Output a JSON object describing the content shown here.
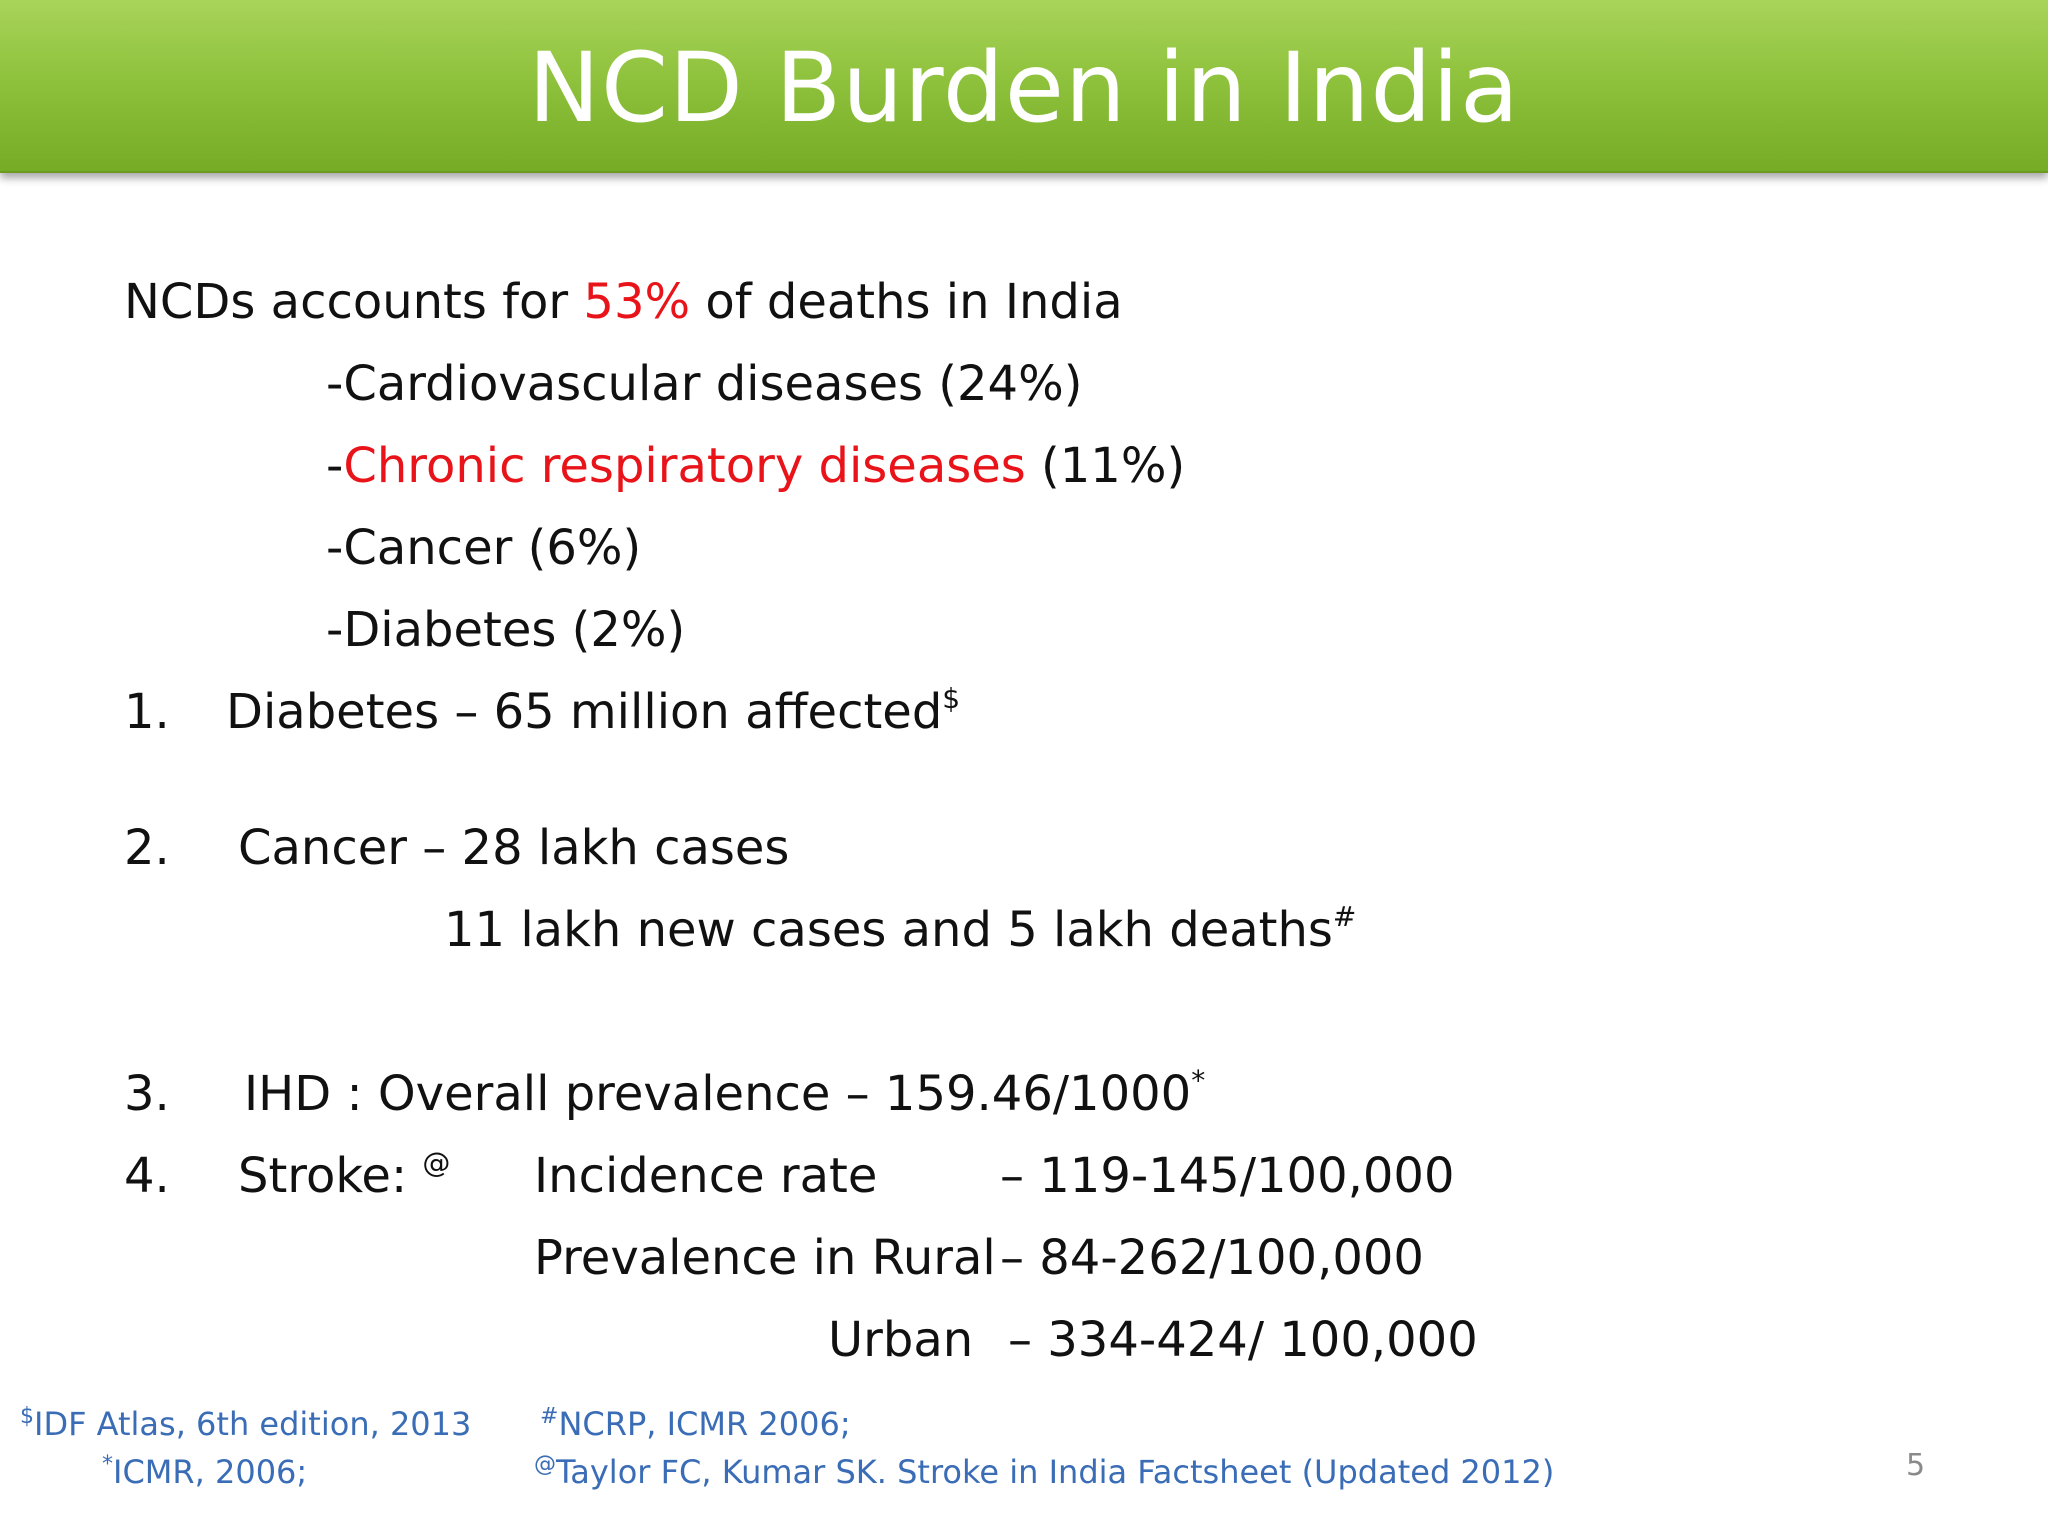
{
  "title": "NCD Burden in India",
  "intro": {
    "pre": "NCDs accounts for ",
    "highlight": "53%",
    "post": " of deaths in India"
  },
  "causes": [
    {
      "dash": "-",
      "label": "Cardiovascular diseases",
      "value": " (24%)"
    },
    {
      "dash": "-",
      "label": "Chronic respiratory diseases",
      "value": " (11%)"
    },
    {
      "dash": "-",
      "label": "Cancer",
      "value": " (6%)"
    },
    {
      "dash": "-",
      "label": "Diabetes",
      "value": " (2%)"
    }
  ],
  "items": {
    "diabetes": {
      "num": "1.",
      "text": "Diabetes – 65 million affected",
      "mark": "$"
    },
    "cancer": {
      "num": "2.",
      "text": "Cancer – 28 lakh cases",
      "sub": "11 lakh new cases and 5 lakh deaths",
      "mark": "#"
    },
    "ihd": {
      "num": "3.",
      "text": "IHD : Overall prevalence – 159.46/1000",
      "mark": "*"
    },
    "stroke": {
      "num": "4.",
      "label": "Stroke: ",
      "mark": "@",
      "incidence_label": "Incidence rate",
      "incidence_value": "– 119-145/100,000",
      "rural_label": "Prevalence in Rural",
      "rural_value": "– 84-262/100,000",
      "urban_label": "Urban",
      "urban_value": "– 334-424/ 100,000"
    }
  },
  "references": {
    "idf": {
      "mark": "$",
      "text": "IDF Atlas, 6th edition, 2013"
    },
    "icmr": {
      "mark": "*",
      "text": "ICMR, 2006;"
    },
    "ncrp": {
      "mark": "#",
      "text": "NCRP, ICMR 2006;"
    },
    "taylor": {
      "mark": "@",
      "text": "Taylor FC,   Kumar SK. Stroke in India Factsheet (Updated 2012)"
    }
  },
  "page_number": "5",
  "colors": {
    "title_bar": "#8fc23d",
    "title_text": "#ffffff",
    "highlight": "#e8141a",
    "reference": "#3a6db6",
    "page_number": "#8a8a8a"
  }
}
